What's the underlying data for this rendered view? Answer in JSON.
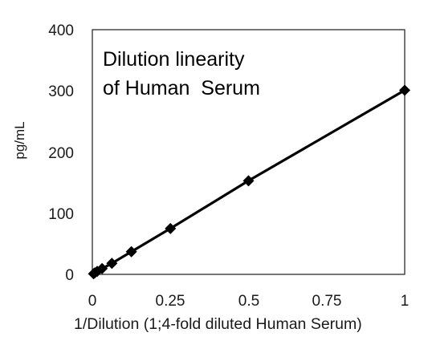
{
  "chart_data": {
    "type": "scatter",
    "title_lines": [
      "Dilution linearity",
      "of Human  Serum"
    ],
    "xlabel": "1/Dilution (1;4-fold diluted  Human Serum)",
    "ylabel": "pg/mL",
    "xlim": [
      0,
      1
    ],
    "ylim": [
      0,
      400
    ],
    "x_ticks": [
      "0",
      "0.25",
      "0.5",
      "0.75",
      "1"
    ],
    "y_ticks": [
      "0",
      "100",
      "200",
      "300",
      "400"
    ],
    "grid": false,
    "line_color": "#000000",
    "marker": "diamond",
    "series": [
      {
        "x": [
          0.0039,
          0.0078,
          0.0156,
          0.03125,
          0.0625,
          0.125,
          0.25,
          0.5,
          1.0
        ],
        "y": [
          1,
          2.5,
          5,
          9.5,
          18,
          37,
          75,
          153,
          301
        ]
      }
    ]
  }
}
